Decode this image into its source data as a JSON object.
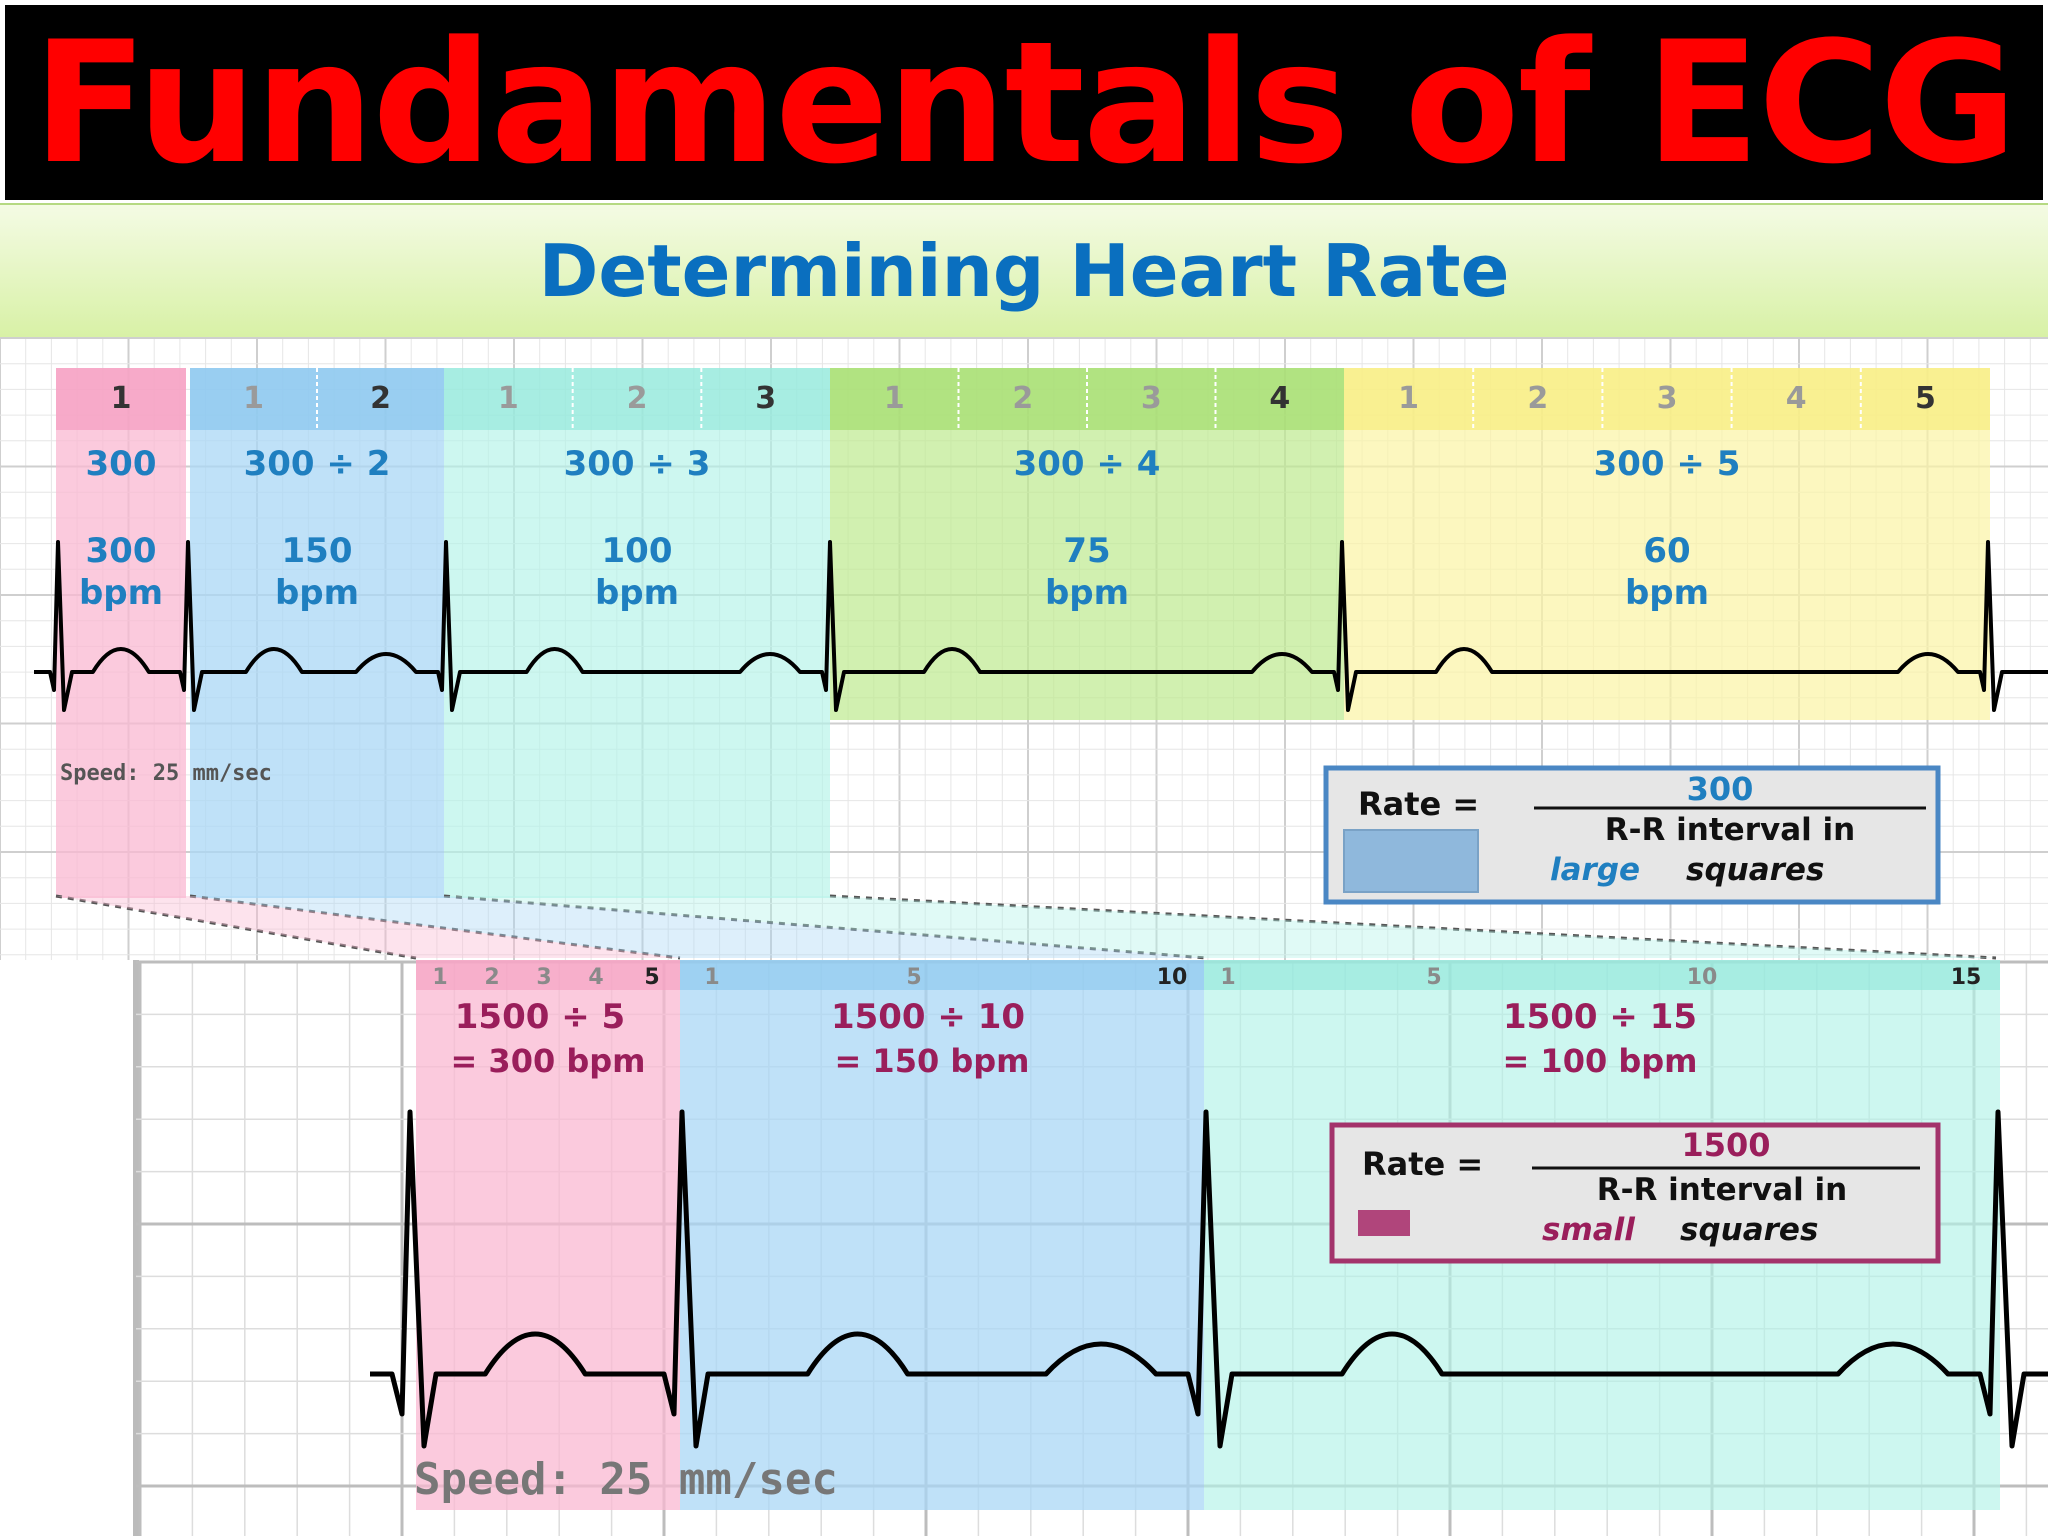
{
  "header": {
    "title": "Fundamentals of ECG",
    "subtitle": "Determining Heart Rate"
  },
  "colors": {
    "title_text": "#ff0000",
    "subtitle_text": "#0a6fbf",
    "pink": "#f9b8d2",
    "blue": "#a9d7f5",
    "cyan": "#b2f2e8",
    "green": "#bde98f",
    "yellow": "#fbf4a4",
    "large_label_text": "#1f7fc0",
    "small_label_text": "#9a1e5b"
  },
  "large_squares": {
    "zones": [
      {
        "counts": [
          "1"
        ],
        "formula": "300",
        "rate": "300",
        "unit": "bpm"
      },
      {
        "counts": [
          "1",
          "2"
        ],
        "formula": "300 ÷ 2",
        "rate": "150",
        "unit": "bpm"
      },
      {
        "counts": [
          "1",
          "2",
          "3"
        ],
        "formula": "300 ÷ 3",
        "rate": "100",
        "unit": "bpm"
      },
      {
        "counts": [
          "1",
          "2",
          "3",
          "4"
        ],
        "formula": "300 ÷ 4",
        "rate": "75",
        "unit": "bpm"
      },
      {
        "counts": [
          "1",
          "2",
          "3",
          "4",
          "5"
        ],
        "formula": "300 ÷ 5",
        "rate": "60",
        "unit": "bpm"
      }
    ],
    "speed": "Speed:  25  mm/sec",
    "rule": {
      "prefix": "Rate =",
      "numerator": "300",
      "denominator_line1": "R-R interval in",
      "denominator_word1": "large",
      "denominator_word2": "squares"
    }
  },
  "small_squares": {
    "zones": [
      {
        "counts": [
          "1",
          "2",
          "3",
          "4",
          "5"
        ],
        "formula": "1500 ÷ 5",
        "result": "= 300 bpm"
      },
      {
        "counts": [
          "1",
          "5",
          "10"
        ],
        "formula": "1500 ÷ 10",
        "result": "= 150 bpm"
      },
      {
        "counts": [
          "1",
          "5",
          "10",
          "15"
        ],
        "formula": "1500 ÷ 15",
        "result": "= 100 bpm"
      }
    ],
    "speed": "Speed:  25  mm/sec",
    "rule": {
      "prefix": "Rate =",
      "numerator": "1500",
      "denominator_line1": "R-R interval in",
      "denominator_word1": "small",
      "denominator_word2": "squares"
    }
  }
}
